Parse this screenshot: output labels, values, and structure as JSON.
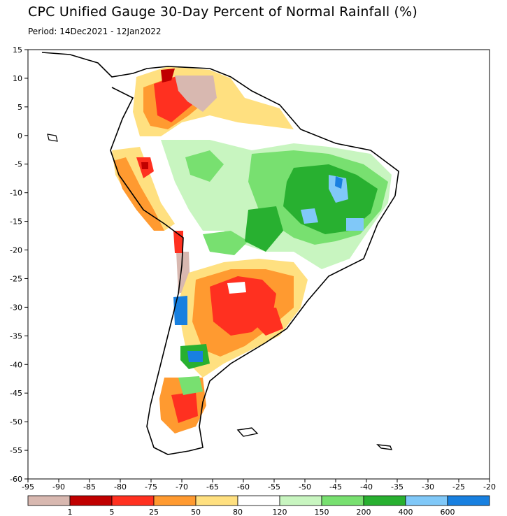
{
  "header": {
    "title": "CPC Unified Gauge 30-Day Percent of Normal Rainfall (%)",
    "period": "Period: 14Dec2021 - 12Jan2022"
  },
  "map": {
    "lon_range": [
      -95,
      -20
    ],
    "lat_range": [
      -60,
      15
    ],
    "x_ticks": [
      "-95",
      "-90",
      "-85",
      "-80",
      "-75",
      "-70",
      "-65",
      "-60",
      "-55",
      "-50",
      "-45",
      "-40",
      "-35",
      "-30",
      "-25",
      "-20"
    ],
    "y_ticks": [
      "15",
      "10",
      "5",
      "0",
      "-5",
      "-10",
      "-15",
      "-20",
      "-25",
      "-30",
      "-35",
      "-40",
      "-45",
      "-50",
      "-55",
      "-60"
    ]
  },
  "legend": {
    "colors": [
      "#d8b8b0",
      "#c00000",
      "#ff3020",
      "#ff9a30",
      "#ffe080",
      "#ffffff",
      "#c8f5c0",
      "#78e070",
      "#28b030",
      "#80c8f8",
      "#1880e0"
    ],
    "labels": [
      "1",
      "5",
      "25",
      "50",
      "80",
      "120",
      "150",
      "200",
      "400",
      "600"
    ]
  },
  "colors": {
    "ocean": "#ffffff",
    "frame": "#000000"
  }
}
